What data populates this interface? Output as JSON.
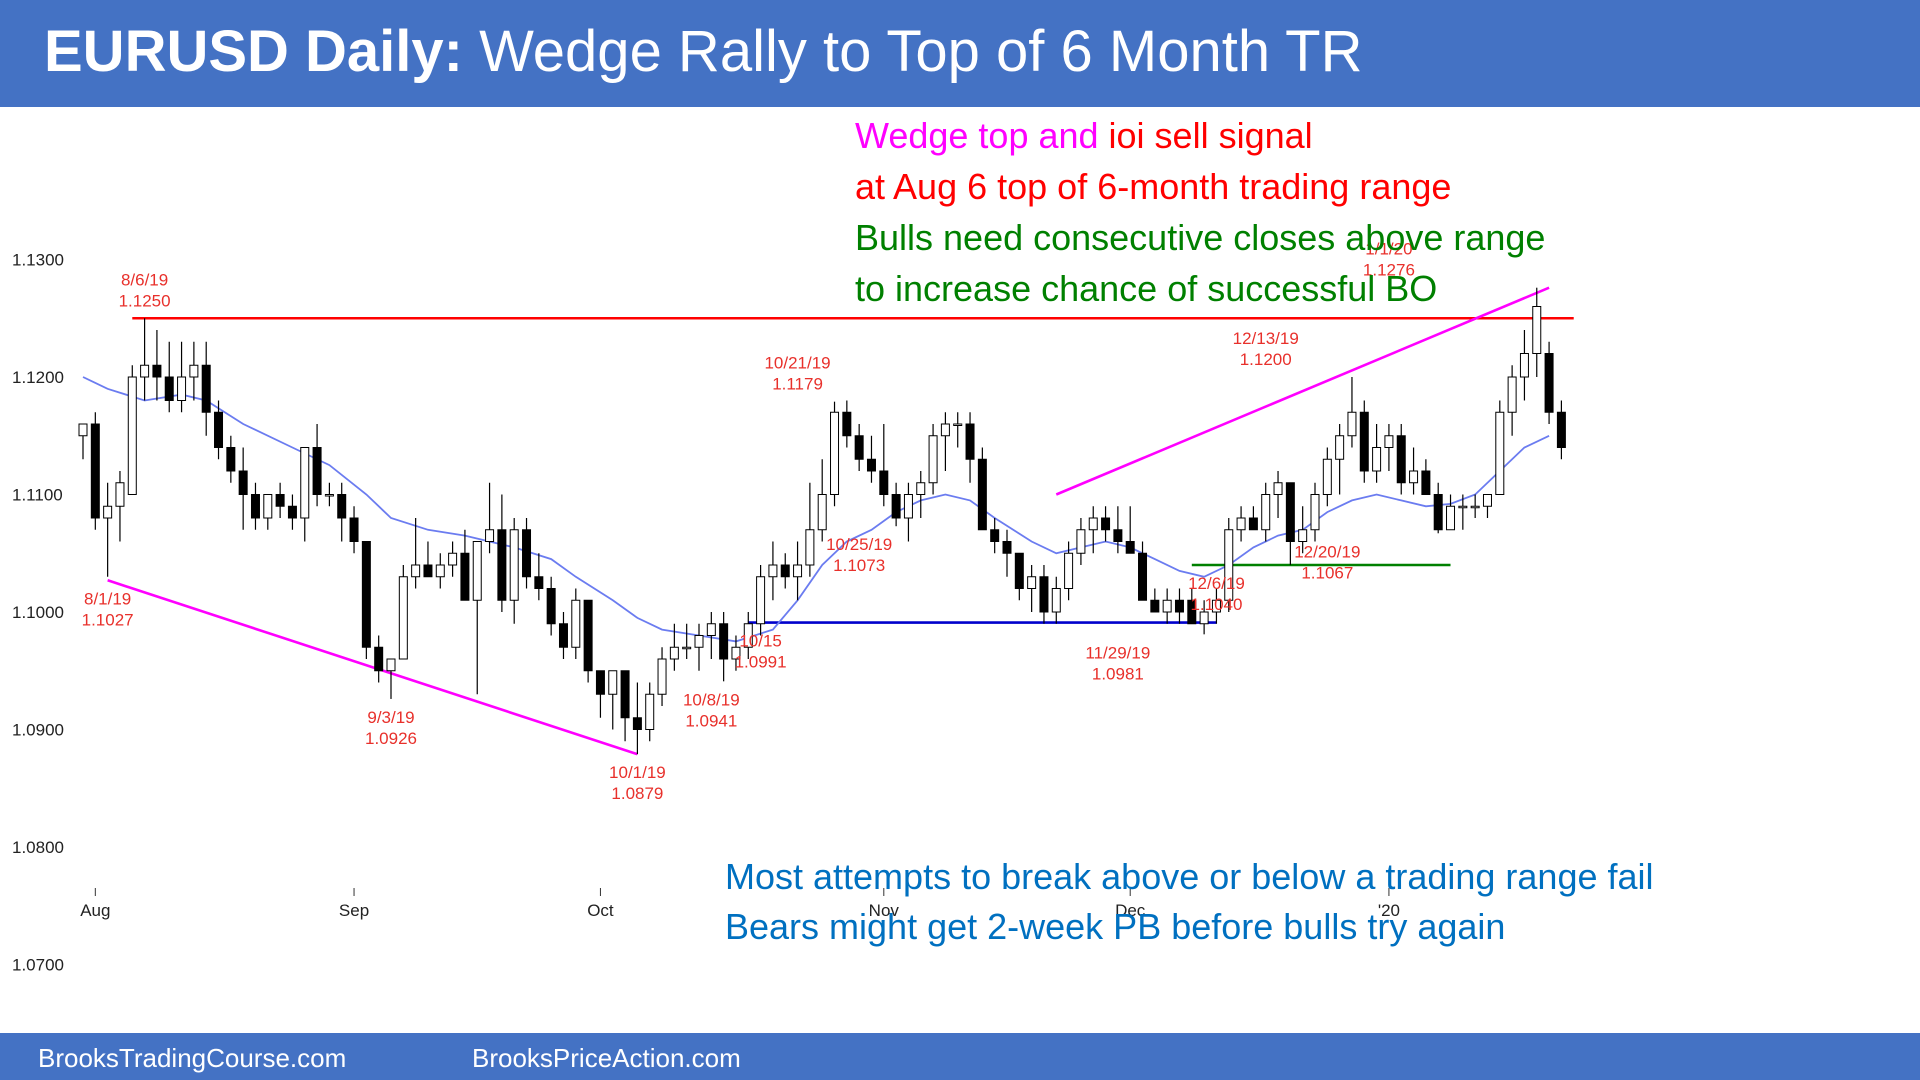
{
  "header": {
    "title_bold": "EURUSD Daily:",
    "title_rest": " Wedge Rally to Top of 6 Month TR"
  },
  "footer": {
    "left_link": "BrooksTradingCourse.com",
    "right_link": "BrooksPriceAction.com"
  },
  "notes": {
    "line1_magenta": "Wedge top and ",
    "line1_red": "ioi sell signal",
    "line2": "at Aug 6 top of 6-month trading range",
    "line3": "Bulls need consecutive closes above range",
    "line4": "to increase chance of successful BO",
    "line5": "Most attempts to break above or below a trading range fail",
    "line6": "Bears might get 2-week PB before bulls try again"
  },
  "colors": {
    "banner": "#4472c4",
    "magenta": "#ff00ff",
    "red": "#ff0000",
    "green": "#008000",
    "note_blue": "#0070c0",
    "ema": "#6b7cf0",
    "support": "#0000cc",
    "label_red": "#e8302b"
  },
  "chart_data": {
    "type": "candlestick",
    "instrument": "EURUSD",
    "timeframe": "Daily",
    "ylim": [
      1.065,
      1.136
    ],
    "y_ticks": [
      "1.0700",
      "1.0800",
      "1.0900",
      "1.1000",
      "1.1100",
      "1.1200",
      "1.1300"
    ],
    "x_ticks": [
      {
        "index": 1,
        "label": "Aug"
      },
      {
        "index": 22,
        "label": "Sep"
      },
      {
        "index": 42,
        "label": "Oct"
      },
      {
        "index": 65,
        "label": "Nov"
      },
      {
        "index": 85,
        "label": "Dec"
      },
      {
        "index": 106,
        "label": "'20"
      }
    ],
    "candles": [
      [
        1.115,
        1.116,
        1.113,
        1.116
      ],
      [
        1.116,
        1.117,
        1.107,
        1.108
      ],
      [
        1.108,
        1.111,
        1.103,
        1.109
      ],
      [
        1.109,
        1.112,
        1.106,
        1.111
      ],
      [
        1.11,
        1.121,
        1.11,
        1.12
      ],
      [
        1.12,
        1.125,
        1.118,
        1.121
      ],
      [
        1.121,
        1.124,
        1.118,
        1.12
      ],
      [
        1.12,
        1.123,
        1.117,
        1.118
      ],
      [
        1.118,
        1.123,
        1.117,
        1.12
      ],
      [
        1.12,
        1.123,
        1.118,
        1.121
      ],
      [
        1.121,
        1.123,
        1.115,
        1.117
      ],
      [
        1.117,
        1.118,
        1.113,
        1.114
      ],
      [
        1.114,
        1.115,
        1.111,
        1.112
      ],
      [
        1.112,
        1.114,
        1.107,
        1.11
      ],
      [
        1.11,
        1.111,
        1.107,
        1.108
      ],
      [
        1.108,
        1.11,
        1.107,
        1.11
      ],
      [
        1.11,
        1.111,
        1.108,
        1.109
      ],
      [
        1.109,
        1.11,
        1.107,
        1.108
      ],
      [
        1.108,
        1.114,
        1.106,
        1.114
      ],
      [
        1.114,
        1.116,
        1.109,
        1.11
      ],
      [
        1.11,
        1.111,
        1.109,
        1.11
      ],
      [
        1.11,
        1.111,
        1.106,
        1.108
      ],
      [
        1.108,
        1.109,
        1.105,
        1.106
      ],
      [
        1.106,
        1.106,
        1.096,
        1.097
      ],
      [
        1.097,
        1.098,
        1.094,
        1.095
      ],
      [
        1.095,
        1.096,
        1.0926,
        1.096
      ],
      [
        1.096,
        1.104,
        1.096,
        1.103
      ],
      [
        1.103,
        1.108,
        1.102,
        1.104
      ],
      [
        1.104,
        1.106,
        1.103,
        1.103
      ],
      [
        1.103,
        1.105,
        1.102,
        1.104
      ],
      [
        1.104,
        1.106,
        1.103,
        1.105
      ],
      [
        1.105,
        1.107,
        1.101,
        1.101
      ],
      [
        1.101,
        1.106,
        1.093,
        1.106
      ],
      [
        1.106,
        1.111,
        1.105,
        1.107
      ],
      [
        1.107,
        1.11,
        1.1,
        1.101
      ],
      [
        1.101,
        1.108,
        1.099,
        1.107
      ],
      [
        1.107,
        1.108,
        1.102,
        1.103
      ],
      [
        1.103,
        1.105,
        1.101,
        1.102
      ],
      [
        1.102,
        1.103,
        1.098,
        1.099
      ],
      [
        1.099,
        1.1,
        1.096,
        1.097
      ],
      [
        1.097,
        1.102,
        1.096,
        1.101
      ],
      [
        1.101,
        1.101,
        1.094,
        1.095
      ],
      [
        1.095,
        1.095,
        1.091,
        1.093
      ],
      [
        1.093,
        1.095,
        1.09,
        1.095
      ],
      [
        1.095,
        1.095,
        1.089,
        1.091
      ],
      [
        1.091,
        1.094,
        1.0879,
        1.09
      ],
      [
        1.09,
        1.094,
        1.089,
        1.093
      ],
      [
        1.093,
        1.097,
        1.092,
        1.096
      ],
      [
        1.096,
        1.099,
        1.095,
        1.097
      ],
      [
        1.097,
        1.099,
        1.096,
        1.097
      ],
      [
        1.097,
        1.099,
        1.095,
        1.098
      ],
      [
        1.098,
        1.1,
        1.096,
        1.099
      ],
      [
        1.099,
        1.1,
        1.0941,
        1.096
      ],
      [
        1.096,
        1.098,
        1.095,
        1.097
      ],
      [
        1.097,
        1.1,
        1.096,
        1.099
      ],
      [
        1.099,
        1.104,
        1.098,
        1.103
      ],
      [
        1.103,
        1.106,
        1.101,
        1.104
      ],
      [
        1.104,
        1.105,
        1.102,
        1.103
      ],
      [
        1.103,
        1.106,
        1.101,
        1.104
      ],
      [
        1.104,
        1.111,
        1.103,
        1.107
      ],
      [
        1.107,
        1.113,
        1.106,
        1.11
      ],
      [
        1.11,
        1.1179,
        1.109,
        1.117
      ],
      [
        1.117,
        1.118,
        1.114,
        1.115
      ],
      [
        1.115,
        1.116,
        1.112,
        1.113
      ],
      [
        1.113,
        1.115,
        1.111,
        1.112
      ],
      [
        1.112,
        1.116,
        1.109,
        1.11
      ],
      [
        1.11,
        1.111,
        1.1073,
        1.108
      ],
      [
        1.108,
        1.111,
        1.106,
        1.11
      ],
      [
        1.11,
        1.112,
        1.108,
        1.111
      ],
      [
        1.111,
        1.116,
        1.11,
        1.115
      ],
      [
        1.115,
        1.117,
        1.112,
        1.116
      ],
      [
        1.116,
        1.117,
        1.114,
        1.116
      ],
      [
        1.116,
        1.117,
        1.111,
        1.113
      ],
      [
        1.113,
        1.114,
        1.107,
        1.107
      ],
      [
        1.107,
        1.108,
        1.105,
        1.106
      ],
      [
        1.106,
        1.107,
        1.103,
        1.105
      ],
      [
        1.105,
        1.105,
        1.101,
        1.102
      ],
      [
        1.102,
        1.104,
        1.1,
        1.103
      ],
      [
        1.103,
        1.104,
        1.099,
        1.1
      ],
      [
        1.1,
        1.103,
        1.099,
        1.102
      ],
      [
        1.102,
        1.106,
        1.101,
        1.105
      ],
      [
        1.105,
        1.108,
        1.104,
        1.107
      ],
      [
        1.107,
        1.109,
        1.105,
        1.108
      ],
      [
        1.108,
        1.109,
        1.106,
        1.107
      ],
      [
        1.107,
        1.109,
        1.105,
        1.106
      ],
      [
        1.106,
        1.109,
        1.105,
        1.105
      ],
      [
        1.105,
        1.106,
        1.101,
        1.101
      ],
      [
        1.101,
        1.102,
        1.1,
        1.1
      ],
      [
        1.1,
        1.102,
        1.099,
        1.101
      ],
      [
        1.101,
        1.102,
        1.099,
        1.1
      ],
      [
        1.101,
        1.102,
        1.099,
        1.099
      ],
      [
        1.099,
        1.101,
        1.0981,
        1.1
      ],
      [
        1.1,
        1.102,
        1.099,
        1.101
      ],
      [
        1.101,
        1.108,
        1.1,
        1.107
      ],
      [
        1.107,
        1.109,
        1.106,
        1.108
      ],
      [
        1.108,
        1.109,
        1.107,
        1.107
      ],
      [
        1.107,
        1.111,
        1.106,
        1.11
      ],
      [
        1.11,
        1.112,
        1.108,
        1.111
      ],
      [
        1.111,
        1.111,
        1.104,
        1.106
      ],
      [
        1.106,
        1.109,
        1.105,
        1.107
      ],
      [
        1.107,
        1.111,
        1.106,
        1.11
      ],
      [
        1.11,
        1.114,
        1.109,
        1.113
      ],
      [
        1.113,
        1.116,
        1.11,
        1.115
      ],
      [
        1.115,
        1.12,
        1.114,
        1.117
      ],
      [
        1.117,
        1.118,
        1.111,
        1.112
      ],
      [
        1.112,
        1.116,
        1.111,
        1.114
      ],
      [
        1.114,
        1.116,
        1.112,
        1.115
      ],
      [
        1.115,
        1.116,
        1.11,
        1.111
      ],
      [
        1.111,
        1.114,
        1.11,
        1.112
      ],
      [
        1.112,
        1.113,
        1.11,
        1.11
      ],
      [
        1.11,
        1.111,
        1.1067,
        1.107
      ],
      [
        1.107,
        1.11,
        1.107,
        1.109
      ],
      [
        1.109,
        1.11,
        1.107,
        1.109
      ],
      [
        1.109,
        1.11,
        1.108,
        1.109
      ],
      [
        1.109,
        1.11,
        1.108,
        1.11
      ],
      [
        1.11,
        1.118,
        1.11,
        1.117
      ],
      [
        1.117,
        1.121,
        1.115,
        1.12
      ],
      [
        1.12,
        1.124,
        1.118,
        1.122
      ],
      [
        1.122,
        1.1276,
        1.12,
        1.126
      ],
      [
        1.122,
        1.123,
        1.116,
        1.117
      ],
      [
        1.117,
        1.118,
        1.113,
        1.114
      ]
    ],
    "ema": [
      [
        0,
        1.12
      ],
      [
        2,
        1.119
      ],
      [
        5,
        1.118
      ],
      [
        8,
        1.1185
      ],
      [
        10,
        1.118
      ],
      [
        13,
        1.116
      ],
      [
        17,
        1.114
      ],
      [
        20,
        1.1125
      ],
      [
        23,
        1.11
      ],
      [
        25,
        1.108
      ],
      [
        28,
        1.107
      ],
      [
        31,
        1.1065
      ],
      [
        35,
        1.1055
      ],
      [
        38,
        1.1045
      ],
      [
        40,
        1.103
      ],
      [
        43,
        1.101
      ],
      [
        45,
        1.0995
      ],
      [
        47,
        1.0985
      ],
      [
        50,
        1.098
      ],
      [
        53,
        1.0975
      ],
      [
        56,
        1.0985
      ],
      [
        58,
        1.101
      ],
      [
        60,
        1.104
      ],
      [
        62,
        1.106
      ],
      [
        64,
        1.107
      ],
      [
        66,
        1.1085
      ],
      [
        68,
        1.1095
      ],
      [
        70,
        1.11
      ],
      [
        72,
        1.1095
      ],
      [
        74,
        1.108
      ],
      [
        77,
        1.106
      ],
      [
        79,
        1.105
      ],
      [
        81,
        1.1055
      ],
      [
        83,
        1.106
      ],
      [
        85,
        1.1055
      ],
      [
        87,
        1.1045
      ],
      [
        89,
        1.1035
      ],
      [
        91,
        1.103
      ],
      [
        93,
        1.104
      ],
      [
        95,
        1.1055
      ],
      [
        97,
        1.1065
      ],
      [
        99,
        1.107
      ],
      [
        101,
        1.1085
      ],
      [
        103,
        1.1095
      ],
      [
        105,
        1.11
      ],
      [
        107,
        1.1095
      ],
      [
        109,
        1.109
      ],
      [
        111,
        1.1092
      ],
      [
        113,
        1.11
      ],
      [
        115,
        1.112
      ],
      [
        117,
        1.114
      ],
      [
        119,
        1.115
      ]
    ],
    "lines": [
      {
        "name": "range-top",
        "color": "#ff0000",
        "from": [
          4,
          1.125
        ],
        "to": [
          121,
          1.125
        ]
      },
      {
        "name": "lower-wedge",
        "color": "#ff00ff",
        "from": [
          2,
          1.1027
        ],
        "to": [
          45,
          1.0879
        ]
      },
      {
        "name": "upper-wedge",
        "color": "#ff00ff",
        "from": [
          79,
          1.11
        ],
        "to": [
          119,
          1.1276
        ]
      },
      {
        "name": "oct-nov-support",
        "color": "#0000cc",
        "from": [
          54,
          1.0991
        ],
        "to": [
          92,
          1.0991
        ]
      },
      {
        "name": "dec-support",
        "color": "#008000",
        "from": [
          90,
          1.104
        ],
        "to": [
          111,
          1.104
        ]
      }
    ],
    "annotations": [
      {
        "date": "8/6/19",
        "price": "1.1250",
        "x": 5,
        "y": 1.125,
        "pos": "above"
      },
      {
        "date": "8/1/19",
        "price": "1.1027",
        "x": 2,
        "y": 1.1027,
        "pos": "below"
      },
      {
        "date": "9/3/19",
        "price": "1.0926",
        "x": 25,
        "y": 1.0926,
        "pos": "below"
      },
      {
        "date": "10/1/19",
        "price": "1.0879",
        "x": 45,
        "y": 1.0879,
        "pos": "below"
      },
      {
        "date": "10/8/19",
        "price": "1.0941",
        "x": 51,
        "y": 1.0941,
        "pos": "below"
      },
      {
        "date": "10/15",
        "price": "1.0991",
        "x": 55,
        "y": 1.0991,
        "pos": "below"
      },
      {
        "date": "10/21/19",
        "price": "1.1179",
        "x": 58,
        "y": 1.1179,
        "pos": "above"
      },
      {
        "date": "10/25/19",
        "price": "1.1073",
        "x": 63,
        "y": 1.1073,
        "pos": "below"
      },
      {
        "date": "11/29/19",
        "price": "1.0981",
        "x": 84,
        "y": 1.0981,
        "pos": "below"
      },
      {
        "date": "12/6/19",
        "price": "1.1040",
        "x": 92,
        "y": 1.104,
        "pos": "below"
      },
      {
        "date": "12/13/19",
        "price": "1.1200",
        "x": 96,
        "y": 1.12,
        "pos": "above"
      },
      {
        "date": "12/20/19",
        "price": "1.1067",
        "x": 101,
        "y": 1.1067,
        "pos": "below"
      },
      {
        "date": "1/1/20",
        "price": "1.1276",
        "x": 106,
        "y": 1.1276,
        "pos": "above"
      }
    ]
  }
}
